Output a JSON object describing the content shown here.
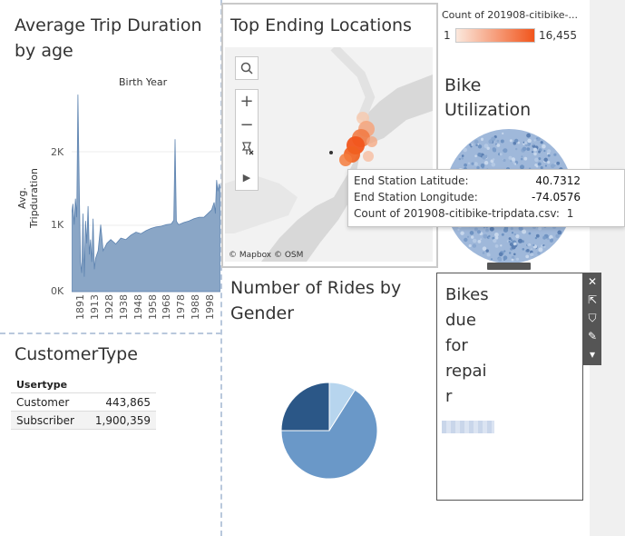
{
  "trip_duration": {
    "title": "Average Trip Duration by age",
    "header": "Birth Year",
    "y_axis_label": "Avg. Tripduration",
    "y_ticks": [
      "2K",
      "1K",
      "0K"
    ],
    "x_ticks": [
      "1891",
      "1913",
      "1928",
      "1938",
      "1948",
      "1958",
      "1968",
      "1978",
      "1988",
      "1998"
    ],
    "color": "#8aa6c6",
    "chart_data": {
      "type": "area",
      "title": "Average Trip Duration by age",
      "xlabel": "Birth Year",
      "ylabel": "Avg. Tripduration",
      "ylim": [
        0,
        2700
      ],
      "x": [
        1885,
        1886,
        1887,
        1888,
        1889,
        1890,
        1891,
        1892,
        1893,
        1894,
        1895,
        1896,
        1897,
        1898,
        1899,
        1900,
        1901,
        1902,
        1903,
        1904,
        1906,
        1908,
        1910,
        1913,
        1916,
        1920,
        1924,
        1928,
        1932,
        1936,
        1940,
        1944,
        1948,
        1952,
        1956,
        1960,
        1964,
        1966,
        1967,
        1968,
        1969,
        1970,
        1974,
        1978,
        1982,
        1986,
        1990,
        1993,
        1996,
        1998,
        1999,
        2000,
        2001,
        2002,
        2003
      ],
      "values": [
        1050,
        1180,
        900,
        1250,
        1000,
        2650,
        1450,
        400,
        250,
        1050,
        200,
        950,
        650,
        1150,
        500,
        700,
        400,
        980,
        300,
        450,
        550,
        900,
        550,
        650,
        700,
        640,
        720,
        700,
        760,
        800,
        780,
        820,
        850,
        870,
        880,
        900,
        910,
        960,
        2050,
        950,
        920,
        900,
        930,
        950,
        980,
        1000,
        1000,
        1050,
        1100,
        1200,
        1050,
        1500,
        1350,
        1450,
        1380
      ]
    }
  },
  "customer_type": {
    "title": "CustomerType",
    "column_header": "Usertype",
    "rows": [
      {
        "label": "Customer",
        "value": "443,865"
      },
      {
        "label": "Subscriber",
        "value": "1,900,359"
      }
    ]
  },
  "map": {
    "title": "Top Ending Locations",
    "tools": [
      "search-icon",
      "zoom-in-icon",
      "zoom-out-icon",
      "pin-icon",
      "play-icon"
    ],
    "tool_labels": {
      "zoom_in": "+",
      "zoom_out": "−",
      "play": "▶"
    },
    "attribution": "© Mapbox © OSM",
    "accent": "#f1551c"
  },
  "legend": {
    "title": "Count of 201908-citibike-...",
    "min": "1",
    "max": "16,455",
    "color_low": "#fbe8dd",
    "color_high": "#f1551c"
  },
  "tooltip": {
    "rows": [
      {
        "label": "End Station Latitude:",
        "value": "40.7312"
      },
      {
        "label": "End Station Longitude:",
        "value": "-74.0576"
      },
      {
        "label": "Count of 201908-citibike-tripdata.csv:",
        "value": "1"
      }
    ]
  },
  "bike_utilization": {
    "title_line1": "Bike",
    "title_line2": "Utilization",
    "color": "#6f93c2"
  },
  "gender": {
    "title_line1": "Number of Rides by",
    "title_line2": "Gender",
    "chart_data": {
      "type": "pie",
      "values": [
        9,
        66,
        25
      ],
      "colors": [
        "#b7d5ee",
        "#6a98c8",
        "#2b5787"
      ]
    }
  },
  "repair": {
    "title_lines": [
      "Bikes",
      "due",
      "for",
      "repai",
      "r"
    ],
    "tools": [
      "close-icon",
      "open-external-icon",
      "filter-icon",
      "pin-icon",
      "more-dropdown-icon"
    ],
    "tool_glyphs": [
      "✕",
      "⇱",
      "⛉",
      "✎",
      "▾"
    ]
  }
}
